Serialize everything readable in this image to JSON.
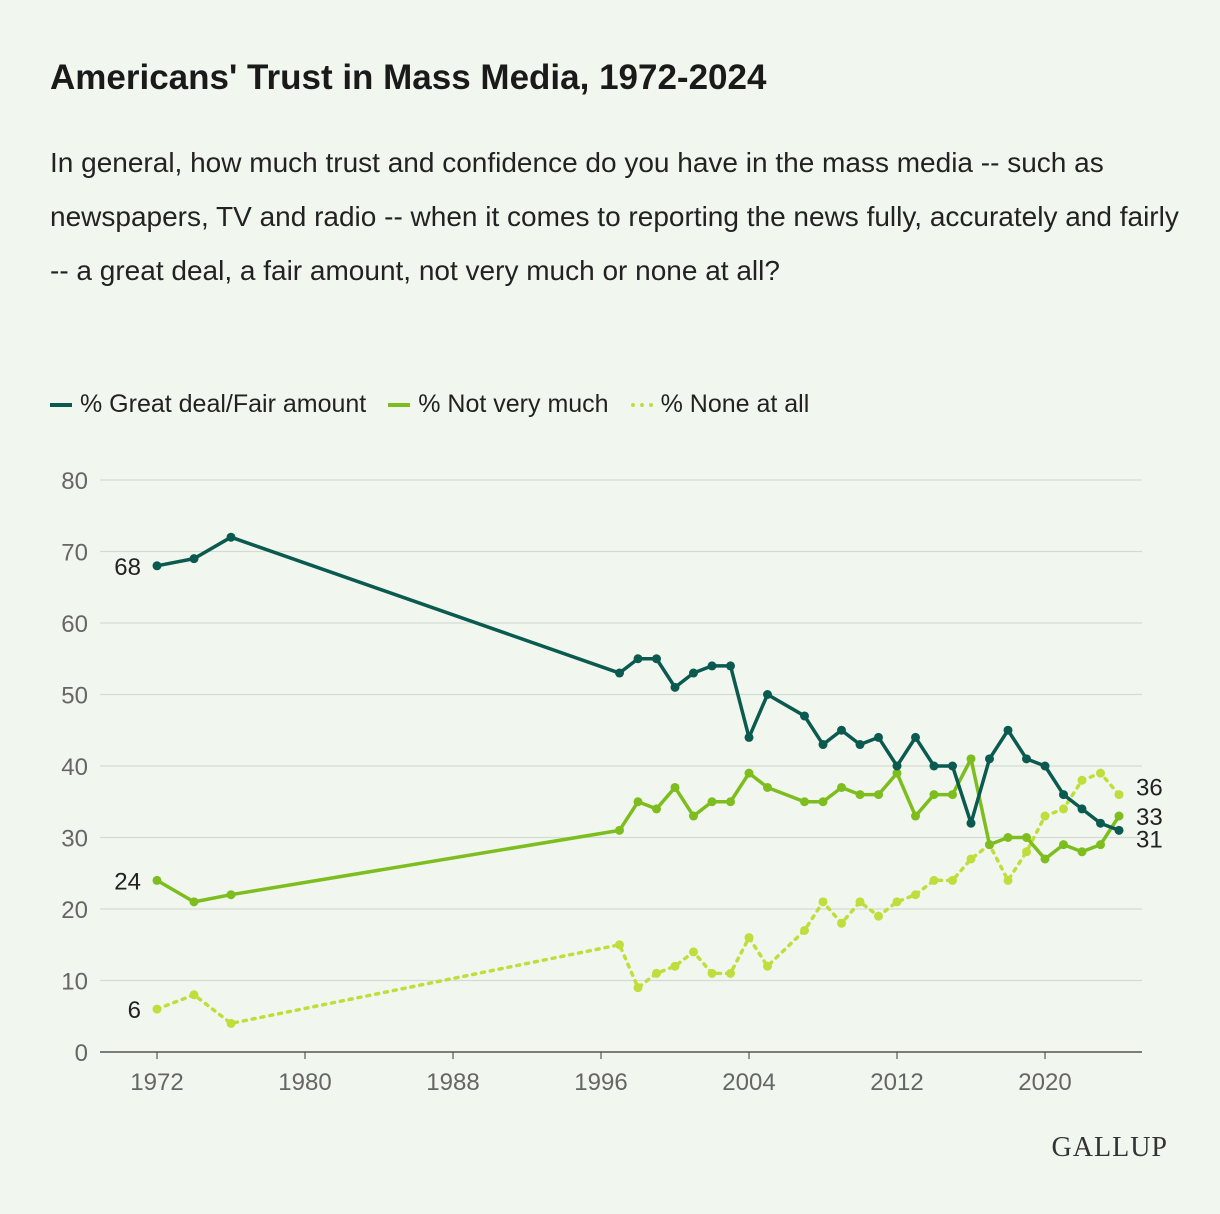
{
  "chart_data": {
    "type": "line",
    "title": "Americans' Trust in Mass Media, 1972-2024",
    "subtitle": "In general, how much trust and confidence do you have in the mass media -- such as newspapers, TV and radio -- when it comes to reporting the news fully, accurately and fairly -- a great deal, a fair amount, not very much or none at all?",
    "xlabel": "",
    "ylabel": "",
    "ylim": [
      0,
      80
    ],
    "xlim": [
      1969,
      2026
    ],
    "yticks": [
      0,
      10,
      20,
      30,
      40,
      50,
      60,
      70,
      80
    ],
    "xticks": [
      1972,
      1980,
      1988,
      1996,
      2004,
      2012,
      2020
    ],
    "grid": true,
    "legend_position": "top-left",
    "x": [
      1972,
      1974,
      1976,
      1997,
      1998,
      1999,
      2000,
      2001,
      2002,
      2003,
      2004,
      2005,
      2007,
      2008,
      2009,
      2010,
      2011,
      2012,
      2013,
      2014,
      2015,
      2016,
      2017,
      2018,
      2019,
      2020,
      2021,
      2022,
      2023,
      2024
    ],
    "series": [
      {
        "name": "% Great deal/Fair amount",
        "color": "#0b5a4f",
        "style": "solid",
        "values": [
          68,
          69,
          72,
          53,
          55,
          55,
          51,
          53,
          54,
          54,
          44,
          50,
          47,
          43,
          45,
          43,
          44,
          40,
          44,
          40,
          40,
          32,
          41,
          45,
          41,
          40,
          36,
          34,
          32,
          31
        ],
        "start_label": "68",
        "end_label": "31"
      },
      {
        "name": "% Not very much",
        "color": "#7dbd1e",
        "style": "solid",
        "values": [
          24,
          21,
          22,
          31,
          35,
          34,
          37,
          33,
          35,
          35,
          39,
          37,
          35,
          35,
          37,
          36,
          36,
          39,
          33,
          36,
          36,
          41,
          29,
          30,
          30,
          27,
          29,
          28,
          29,
          33
        ],
        "start_label": "24",
        "end_label": "33"
      },
      {
        "name": "% None at all",
        "color": "#c0dd3c",
        "style": "dotted",
        "values": [
          6,
          8,
          4,
          15,
          9,
          11,
          12,
          14,
          11,
          11,
          16,
          12,
          17,
          21,
          18,
          21,
          19,
          21,
          22,
          24,
          24,
          27,
          29,
          24,
          28,
          33,
          34,
          38,
          39,
          36
        ],
        "start_label": "6",
        "end_label": "36"
      }
    ]
  },
  "logo": "GALLUP"
}
